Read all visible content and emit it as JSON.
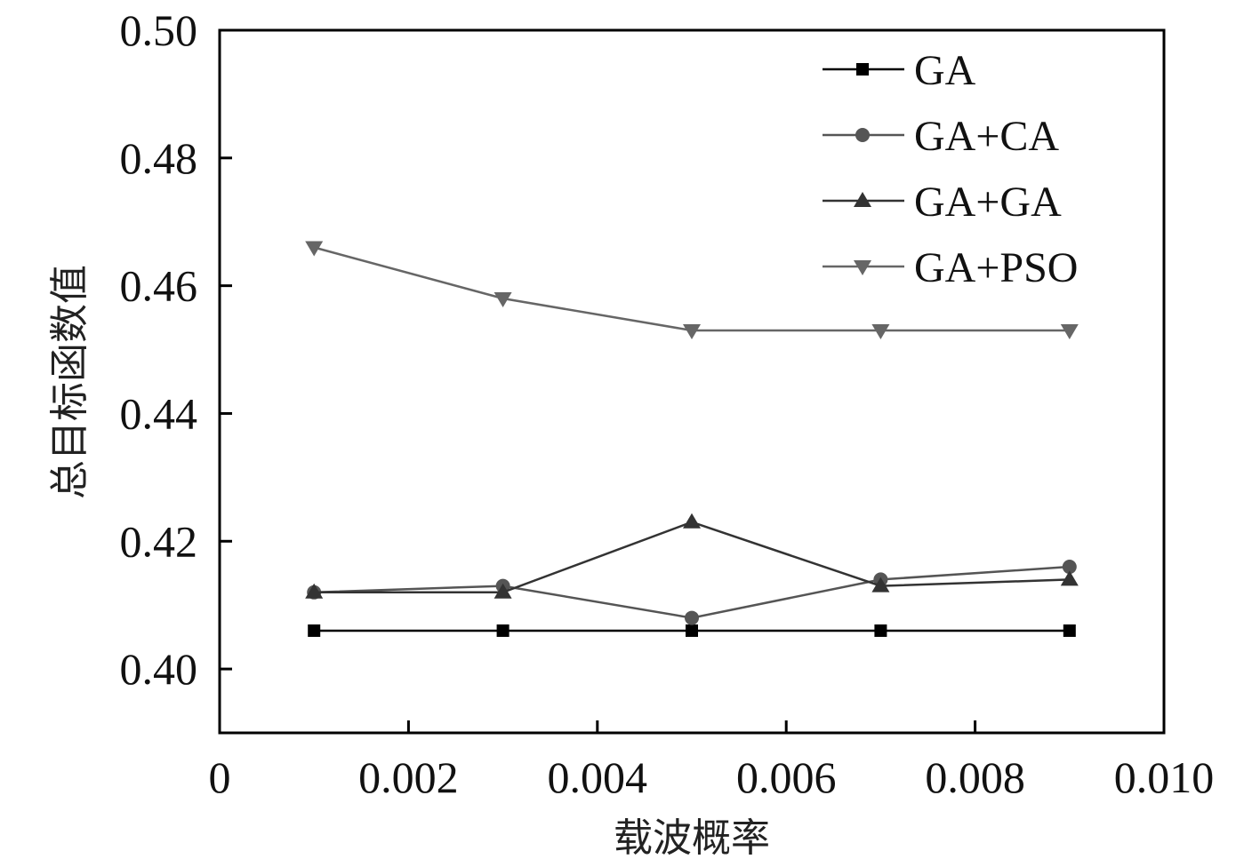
{
  "chart_data": {
    "type": "line",
    "title": "",
    "xlabel": "载波概率",
    "ylabel": "总目标函数值",
    "xlim": [
      0,
      0.01
    ],
    "ylim": [
      0.39,
      0.5
    ],
    "x_ticks": [
      0,
      0.002,
      0.004,
      0.006,
      0.008,
      0.01
    ],
    "x_tick_labels": [
      "0",
      "0.002",
      "0.004",
      "0.006",
      "0.008",
      "0.010"
    ],
    "y_ticks": [
      0.4,
      0.42,
      0.44,
      0.46,
      0.48,
      0.5
    ],
    "y_tick_labels": [
      "0.40",
      "0.42",
      "0.44",
      "0.46",
      "0.48",
      "0.50"
    ],
    "x": [
      0.001,
      0.003,
      0.005,
      0.007,
      0.009
    ],
    "grid": false,
    "legend_position": "top-right",
    "series": [
      {
        "name": "GA",
        "marker": "square",
        "color": "#000000",
        "values": [
          0.406,
          0.406,
          0.406,
          0.406,
          0.406
        ]
      },
      {
        "name": "GA+CA",
        "marker": "circle",
        "color": "#555555",
        "values": [
          0.412,
          0.413,
          0.408,
          0.414,
          0.416
        ]
      },
      {
        "name": "GA+GA",
        "marker": "triangle-up",
        "color": "#333333",
        "values": [
          0.412,
          0.412,
          0.423,
          0.413,
          0.414
        ]
      },
      {
        "name": "GA+PSO",
        "marker": "triangle-down",
        "color": "#666666",
        "values": [
          0.466,
          0.458,
          0.453,
          0.453,
          0.453
        ]
      }
    ]
  }
}
